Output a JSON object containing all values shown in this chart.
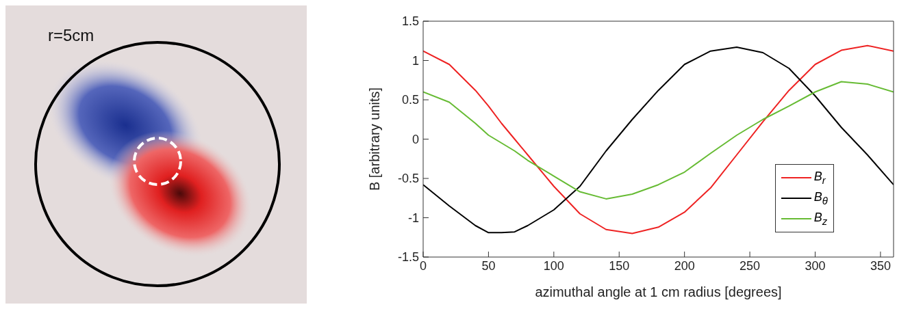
{
  "chart_data": [
    {
      "type": "other",
      "annotations": [
        "r=5cm"
      ]
    },
    {
      "type": "line",
      "xlabel": "azimuthal angle at 1 cm radius [degrees]",
      "ylabel": "B [arbitrary units]",
      "x": [
        0,
        20,
        40,
        50,
        60,
        70,
        80,
        100,
        120,
        140,
        160,
        180,
        200,
        220,
        240,
        260,
        280,
        300,
        320,
        340,
        360
      ],
      "series": [
        {
          "name": "B$_{r}$",
          "color": "#ee2222",
          "values": [
            1.12,
            0.95,
            0.62,
            0.42,
            0.2,
            0.0,
            -0.2,
            -0.6,
            -0.95,
            -1.15,
            -1.2,
            -1.12,
            -0.93,
            -0.62,
            -0.2,
            0.22,
            0.62,
            0.95,
            1.13,
            1.19,
            1.12
          ]
        },
        {
          "name": "B$_{θ}$",
          "color": "#000000",
          "values": [
            -0.58,
            -0.85,
            -1.1,
            -1.19,
            -1.19,
            -1.18,
            -1.1,
            -0.9,
            -0.6,
            -0.15,
            0.25,
            0.62,
            0.95,
            1.12,
            1.17,
            1.1,
            0.9,
            0.55,
            0.15,
            -0.2,
            -0.58
          ]
        },
        {
          "name": "B$_{z}$",
          "color": "#66bb33",
          "values": [
            0.6,
            0.47,
            0.2,
            0.05,
            -0.05,
            -0.15,
            -0.27,
            -0.47,
            -0.67,
            -0.76,
            -0.7,
            -0.58,
            -0.42,
            -0.18,
            0.05,
            0.25,
            0.42,
            0.6,
            0.73,
            0.7,
            0.6
          ]
        }
      ],
      "xlim": [
        0,
        360
      ],
      "xticks": [
        0,
        50,
        100,
        150,
        200,
        250,
        300,
        350
      ],
      "ylim": [
        -1.5,
        1.5
      ],
      "yticks": [
        -1.5,
        -1,
        -0.5,
        0,
        0.5,
        1,
        1.5
      ],
      "grid": false,
      "legend": "right",
      "marker": "none",
      "line_style": "solid"
    }
  ]
}
